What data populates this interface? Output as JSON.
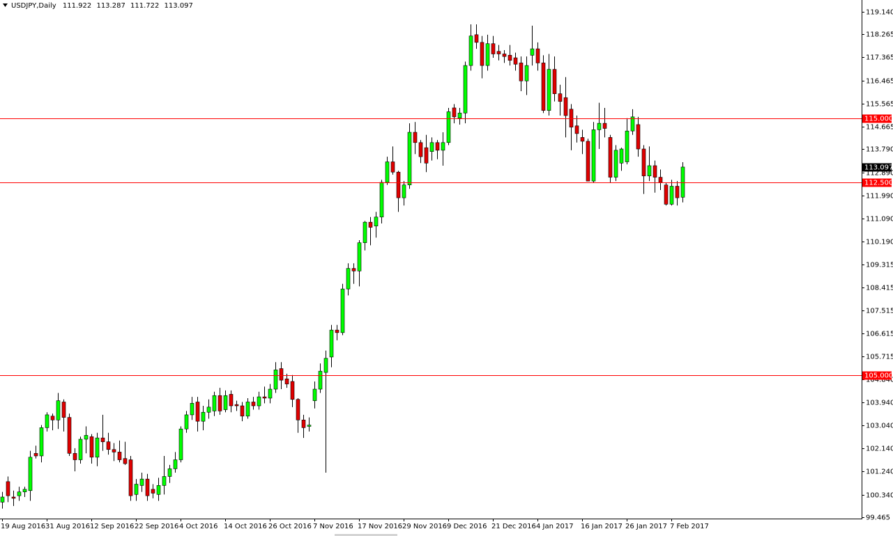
{
  "chart_data": {
    "type": "candlestick",
    "title": "USDJPY,Daily",
    "up_color": "#00ff00",
    "down_color": "#e00000",
    "wick_color": "#000000",
    "level_color": "#ff0000",
    "ylim": [
      99.41,
      119.6
    ],
    "yticks": [
      {
        "value": 119.14,
        "label": "119.140"
      },
      118.265,
      117.365,
      116.465,
      115.565,
      114.665,
      {
        "value": 113.79,
        "label": "113.790"
      },
      {
        "value": 112.89,
        "label": "112.890"
      },
      {
        "value": 111.99,
        "label": "111.990"
      },
      {
        "value": 111.09,
        "label": "111.090"
      },
      {
        "value": 110.19,
        "label": "110.190"
      },
      109.315,
      108.415,
      107.515,
      106.615,
      105.715,
      {
        "value": 104.84,
        "label": "104.840"
      },
      {
        "value": 103.94,
        "label": "103.940"
      },
      {
        "value": 103.04,
        "label": "103.040"
      },
      {
        "value": 102.14,
        "label": "102.140"
      },
      {
        "value": 101.24,
        "label": "101.240"
      },
      {
        "value": 100.34,
        "label": "100.340"
      },
      99.465
    ],
    "levels": [
      {
        "value": 115,
        "label": "115.000"
      },
      {
        "value": 112.5,
        "label": "112.500"
      },
      {
        "value": 105,
        "label": "105.000"
      }
    ],
    "categories": [
      "19 Aug 2016",
      null,
      null,
      null,
      null,
      null,
      null,
      null,
      "31 Aug 2016",
      null,
      null,
      null,
      null,
      null,
      null,
      null,
      "12 Sep 2016",
      null,
      null,
      null,
      null,
      null,
      null,
      null,
      "22 Sep 2016",
      null,
      null,
      null,
      null,
      null,
      null,
      null,
      "4 Oct 2016",
      null,
      null,
      null,
      null,
      null,
      null,
      null,
      "14 Oct 2016",
      null,
      null,
      null,
      null,
      null,
      null,
      null,
      "26 Oct 2016",
      null,
      null,
      null,
      null,
      null,
      null,
      null,
      "7 Nov 2016",
      null,
      null,
      null,
      null,
      null,
      null,
      null,
      "17 Nov 2016",
      null,
      null,
      null,
      null,
      null,
      null,
      null,
      "29 Nov 2016",
      null,
      null,
      null,
      null,
      null,
      null,
      null,
      "9 Dec 2016",
      null,
      null,
      null,
      null,
      null,
      null,
      null,
      "21 Dec 2016",
      null,
      null,
      null,
      null,
      null,
      null,
      null,
      "4 Jan 2017",
      null,
      null,
      null,
      null,
      null,
      null,
      null,
      "16 Jan 2017",
      null,
      null,
      null,
      null,
      null,
      null,
      null,
      "26 Jan 2017",
      null,
      null,
      null,
      null,
      null,
      null,
      null,
      "7 Feb 2017",
      null,
      null
    ],
    "open": [
      100.05,
      100.85,
      100.25,
      100.3,
      100.45,
      100.5,
      101.95,
      101.85,
      102.95,
      103.4,
      103.25,
      103.95,
      103.35,
      101.95,
      101.7,
      102.5,
      102.6,
      101.8,
      102.55,
      102.4,
      102.1,
      102.0,
      101.75,
      101.7,
      100.35,
      100.7,
      100.95,
      100.55,
      100.35,
      100.7,
      101.05,
      101.35,
      101.7,
      102.9,
      103.45,
      103.95,
      103.2,
      103.55,
      103.6,
      104.2,
      103.65,
      104.25,
      103.85,
      103.8,
      103.4,
      103.95,
      103.8,
      104.15,
      104.1,
      104.45,
      105.25,
      104.85,
      104.75,
      104.05,
      103.25,
      103.0,
      104.0,
      104.45,
      105.1,
      105.7,
      106.75,
      106.65,
      108.35,
      109.15,
      109.05,
      110.15,
      110.95,
      110.8,
      111.15,
      112.5,
      113.3,
      112.9,
      111.9,
      112.4,
      114.45,
      114.05,
      113.85,
      113.7,
      114.05,
      113.75,
      114.05,
      115.4,
      115.0,
      115.2,
      117.05,
      118.25,
      117.95,
      117.05,
      117.9,
      117.6,
      117.5,
      117.45,
      117.35,
      117.15,
      116.45,
      117.45,
      117.7,
      117.15,
      115.3,
      116.9,
      115.95,
      115.8,
      115.35,
      114.7,
      114.25,
      114.1,
      112.55,
      114.55,
      114.8,
      114.25,
      112.7,
      113.25,
      113.3,
      114.5,
      114.75,
      113.8,
      112.75,
      113.15,
      112.7,
      112.4,
      111.65,
      112.35,
      111.922
    ],
    "high": [
      100.45,
      101.05,
      100.5,
      100.65,
      100.65,
      102.05,
      102.25,
      103.05,
      103.55,
      103.5,
      104.3,
      104.05,
      103.5,
      102.15,
      102.6,
      103.0,
      102.7,
      102.75,
      103.45,
      102.75,
      102.35,
      102.45,
      102.4,
      101.85,
      100.95,
      101.2,
      101.15,
      100.75,
      101.0,
      101.85,
      101.5,
      102.0,
      103.0,
      103.6,
      104.15,
      104.15,
      103.8,
      104.05,
      104.35,
      104.5,
      104.4,
      104.4,
      104.0,
      103.95,
      104.1,
      104.15,
      104.35,
      104.55,
      104.65,
      105.5,
      105.5,
      105.05,
      105.0,
      104.1,
      103.45,
      103.35,
      104.75,
      105.45,
      105.95,
      106.95,
      106.95,
      108.55,
      109.35,
      109.35,
      110.25,
      111.0,
      111.15,
      111.35,
      112.6,
      113.5,
      113.9,
      112.95,
      112.55,
      114.8,
      114.85,
      114.15,
      114.35,
      114.25,
      114.15,
      114.45,
      115.4,
      115.55,
      115.4,
      117.2,
      118.65,
      118.65,
      118.2,
      118.25,
      118.2,
      117.85,
      117.65,
      117.85,
      117.55,
      117.4,
      117.4,
      118.6,
      117.95,
      117.45,
      117.5,
      117.4,
      116.3,
      116.6,
      115.55,
      115.1,
      114.55,
      114.2,
      114.85,
      115.6,
      115.4,
      114.35,
      113.95,
      113.85,
      115.0,
      115.35,
      115.05,
      113.95,
      113.9,
      113.35,
      113.0,
      112.5,
      112.6,
      112.55,
      113.287
    ],
    "low": [
      99.8,
      100.05,
      99.9,
      100.1,
      100.25,
      100.1,
      101.75,
      101.6,
      102.8,
      102.85,
      102.9,
      102.8,
      101.85,
      101.25,
      101.55,
      101.95,
      101.55,
      101.45,
      102.05,
      101.9,
      101.65,
      101.6,
      101.5,
      100.1,
      100.1,
      100.45,
      100.1,
      100.2,
      100.1,
      100.35,
      100.8,
      101.2,
      101.6,
      102.75,
      103.25,
      102.8,
      102.85,
      103.3,
      103.4,
      103.45,
      103.55,
      103.55,
      103.6,
      103.2,
      103.3,
      103.65,
      103.65,
      103.9,
      103.9,
      104.3,
      104.45,
      104.5,
      103.75,
      102.75,
      102.55,
      102.8,
      103.7,
      104.3,
      101.2,
      105.3,
      106.35,
      106.55,
      108.1,
      108.55,
      108.45,
      109.85,
      110.05,
      110.35,
      110.9,
      112.4,
      112.8,
      111.35,
      111.6,
      112.25,
      113.6,
      113.25,
      112.9,
      113.35,
      113.4,
      113.15,
      113.95,
      114.8,
      114.75,
      114.8,
      116.85,
      117.7,
      116.55,
      116.85,
      117.35,
      117.25,
      117.15,
      117.05,
      116.85,
      116.05,
      115.9,
      117.05,
      116.85,
      115.2,
      115.1,
      115.65,
      115.1,
      114.25,
      113.75,
      114.05,
      113.6,
      112.55,
      112.5,
      113.8,
      114.25,
      112.5,
      112.55,
      112.95,
      113.2,
      114.35,
      113.5,
      112.05,
      112.55,
      112.1,
      112.2,
      111.6,
      111.6,
      111.6,
      111.722
    ],
    "close": [
      100.25,
      100.3,
      100.2,
      100.45,
      100.55,
      101.8,
      101.85,
      102.95,
      103.45,
      103.25,
      104.0,
      103.35,
      101.95,
      101.7,
      102.5,
      102.65,
      101.8,
      102.55,
      102.4,
      102.1,
      102.0,
      101.7,
      101.55,
      100.3,
      100.75,
      100.95,
      100.3,
      100.4,
      100.7,
      101.05,
      101.35,
      101.7,
      102.9,
      103.45,
      103.9,
      103.2,
      103.55,
      103.75,
      104.2,
      103.6,
      104.2,
      103.8,
      103.8,
      103.4,
      103.95,
      103.8,
      104.15,
      104.1,
      104.45,
      105.2,
      104.8,
      104.65,
      104.05,
      103.25,
      102.95,
      103.05,
      104.45,
      105.15,
      105.65,
      106.75,
      106.65,
      108.35,
      109.15,
      109.05,
      110.15,
      110.95,
      110.75,
      111.15,
      112.5,
      113.3,
      112.9,
      111.9,
      112.4,
      114.45,
      114.05,
      113.5,
      113.25,
      114.05,
      113.75,
      114.05,
      115.25,
      115.05,
      115.2,
      117.05,
      118.2,
      117.95,
      117.05,
      117.9,
      117.5,
      117.5,
      117.4,
      117.25,
      117.1,
      116.45,
      117.05,
      117.7,
      117.15,
      115.3,
      116.9,
      115.95,
      115.65,
      115.1,
      114.65,
      114.4,
      114.1,
      112.55,
      114.55,
      114.8,
      114.6,
      112.7,
      113.75,
      113.8,
      114.5,
      115.05,
      113.8,
      112.75,
      113.15,
      112.7,
      112.5,
      111.65,
      112.35,
      111.9,
      113.097
    ]
  }
}
